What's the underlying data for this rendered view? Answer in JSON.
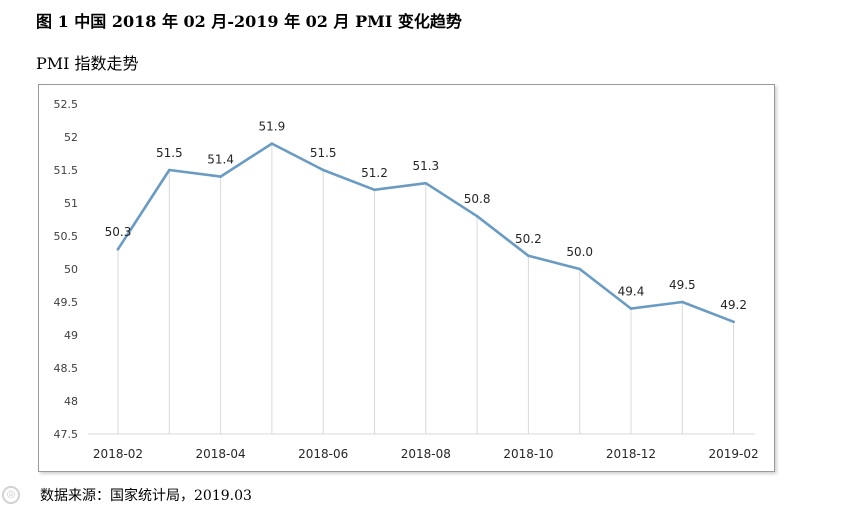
{
  "figure_title": "图 1 中国 2018 年 02 月-2019 年 02 月 PMI 变化趋势",
  "source_note": "数据来源：国家统计局，2019.03",
  "colors": {
    "line": "#6a9bc3",
    "grid": "#d9d9d9",
    "frame": "#9a9a9a"
  },
  "chart_data": {
    "type": "line",
    "title": "PMI 指数走势",
    "xlabel": "",
    "ylabel": "",
    "x": [
      "2018-02",
      "2018-03",
      "2018-04",
      "2018-05",
      "2018-06",
      "2018-07",
      "2018-08",
      "2018-09",
      "2018-10",
      "2018-11",
      "2018-12",
      "2019-01",
      "2019-02"
    ],
    "x_tick_labels": [
      "2018-02",
      "2018-04",
      "2018-06",
      "2018-08",
      "2018-10",
      "2018-12",
      "2019-02"
    ],
    "series": [
      {
        "name": "PMI",
        "values": [
          50.3,
          51.5,
          51.4,
          51.9,
          51.5,
          51.2,
          51.3,
          50.8,
          50.2,
          50.0,
          49.4,
          49.5,
          49.2
        ]
      }
    ],
    "data_labels": [
      "50.3",
      "51.5",
      "51.4",
      "51.9",
      "51.5",
      "51.2",
      "51.3",
      "50.8",
      "50.2",
      "50.0",
      "49.4",
      "49.5",
      "49.2"
    ],
    "ylim": [
      47.5,
      52.5
    ],
    "yticks": [
      47.5,
      48,
      48.5,
      49,
      49.5,
      50,
      50.5,
      51,
      51.5,
      52,
      52.5
    ],
    "grid": "vertical drop lines",
    "legend": "none"
  }
}
